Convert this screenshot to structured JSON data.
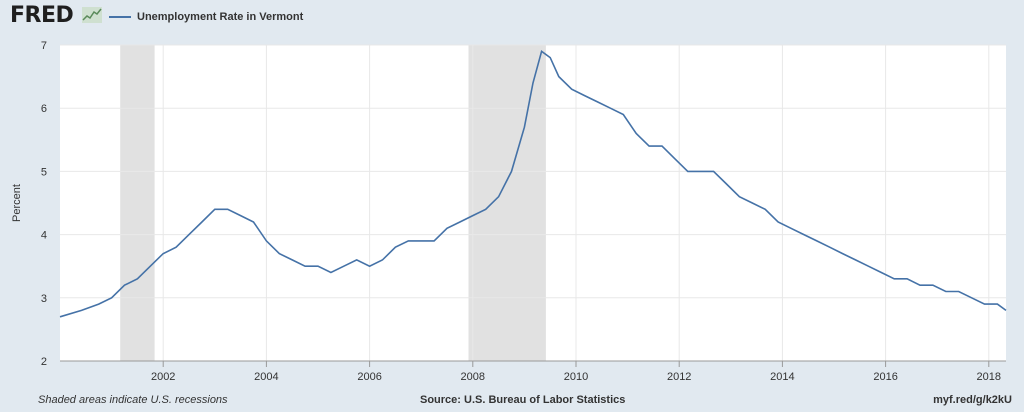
{
  "header": {
    "logo_text": "FRED",
    "legend_label": "Unemployment Rate in Vermont",
    "series_color": "#4572a7"
  },
  "footer": {
    "note": "Shaded areas indicate U.S. recessions",
    "source": "Source: U.S. Bureau of Labor Statistics",
    "link": "myf.red/g/k2kU"
  },
  "chart_data": {
    "type": "line",
    "title": "",
    "xlabel": "",
    "ylabel": "Percent",
    "ylim": [
      2,
      7
    ],
    "xlim": [
      "2000-01",
      "2018-05"
    ],
    "y_ticks": [
      "2",
      "3",
      "4",
      "5",
      "6",
      "7"
    ],
    "x_ticks": [
      "2002",
      "2004",
      "2006",
      "2008",
      "2010",
      "2012",
      "2014",
      "2016",
      "2018"
    ],
    "grid": true,
    "legend": "top-left",
    "recessions": [
      {
        "start": "2001-03",
        "end": "2001-11"
      },
      {
        "start": "2007-12",
        "end": "2009-06"
      }
    ],
    "series": [
      {
        "name": "Unemployment Rate in Vermont",
        "color": "#4572a7",
        "x": [
          "2000-01",
          "2000-06",
          "2000-10",
          "2001-01",
          "2001-04",
          "2001-07",
          "2001-10",
          "2002-01",
          "2002-04",
          "2002-07",
          "2002-10",
          "2003-01",
          "2003-04",
          "2003-07",
          "2003-10",
          "2004-01",
          "2004-04",
          "2004-07",
          "2004-10",
          "2005-01",
          "2005-04",
          "2005-07",
          "2005-10",
          "2006-01",
          "2006-04",
          "2006-07",
          "2006-10",
          "2007-01",
          "2007-04",
          "2007-07",
          "2007-10",
          "2008-01",
          "2008-04",
          "2008-07",
          "2008-10",
          "2009-01",
          "2009-03",
          "2009-05",
          "2009-07",
          "2009-09",
          "2009-12",
          "2010-03",
          "2010-06",
          "2010-09",
          "2010-12",
          "2011-03",
          "2011-06",
          "2011-09",
          "2011-12",
          "2012-03",
          "2012-06",
          "2012-09",
          "2012-12",
          "2013-03",
          "2013-06",
          "2013-09",
          "2013-12",
          "2014-03",
          "2014-06",
          "2014-09",
          "2014-12",
          "2015-03",
          "2015-06",
          "2015-09",
          "2015-12",
          "2016-03",
          "2016-06",
          "2016-09",
          "2016-12",
          "2017-03",
          "2017-06",
          "2017-09",
          "2017-12",
          "2018-03",
          "2018-05"
        ],
        "values": [
          2.7,
          2.8,
          2.9,
          3.0,
          3.2,
          3.3,
          3.5,
          3.7,
          3.8,
          4.0,
          4.2,
          4.4,
          4.4,
          4.3,
          4.2,
          3.9,
          3.7,
          3.6,
          3.5,
          3.5,
          3.4,
          3.5,
          3.6,
          3.5,
          3.6,
          3.8,
          3.9,
          3.9,
          3.9,
          4.1,
          4.2,
          4.3,
          4.4,
          4.6,
          5.0,
          5.7,
          6.4,
          6.9,
          6.8,
          6.5,
          6.3,
          6.2,
          6.1,
          6.0,
          5.9,
          5.6,
          5.4,
          5.4,
          5.2,
          5.0,
          5.0,
          5.0,
          4.8,
          4.6,
          4.5,
          4.4,
          4.2,
          4.1,
          4.0,
          3.9,
          3.8,
          3.7,
          3.6,
          3.5,
          3.4,
          3.3,
          3.3,
          3.2,
          3.2,
          3.1,
          3.1,
          3.0,
          2.9,
          2.9,
          2.8
        ]
      }
    ]
  }
}
